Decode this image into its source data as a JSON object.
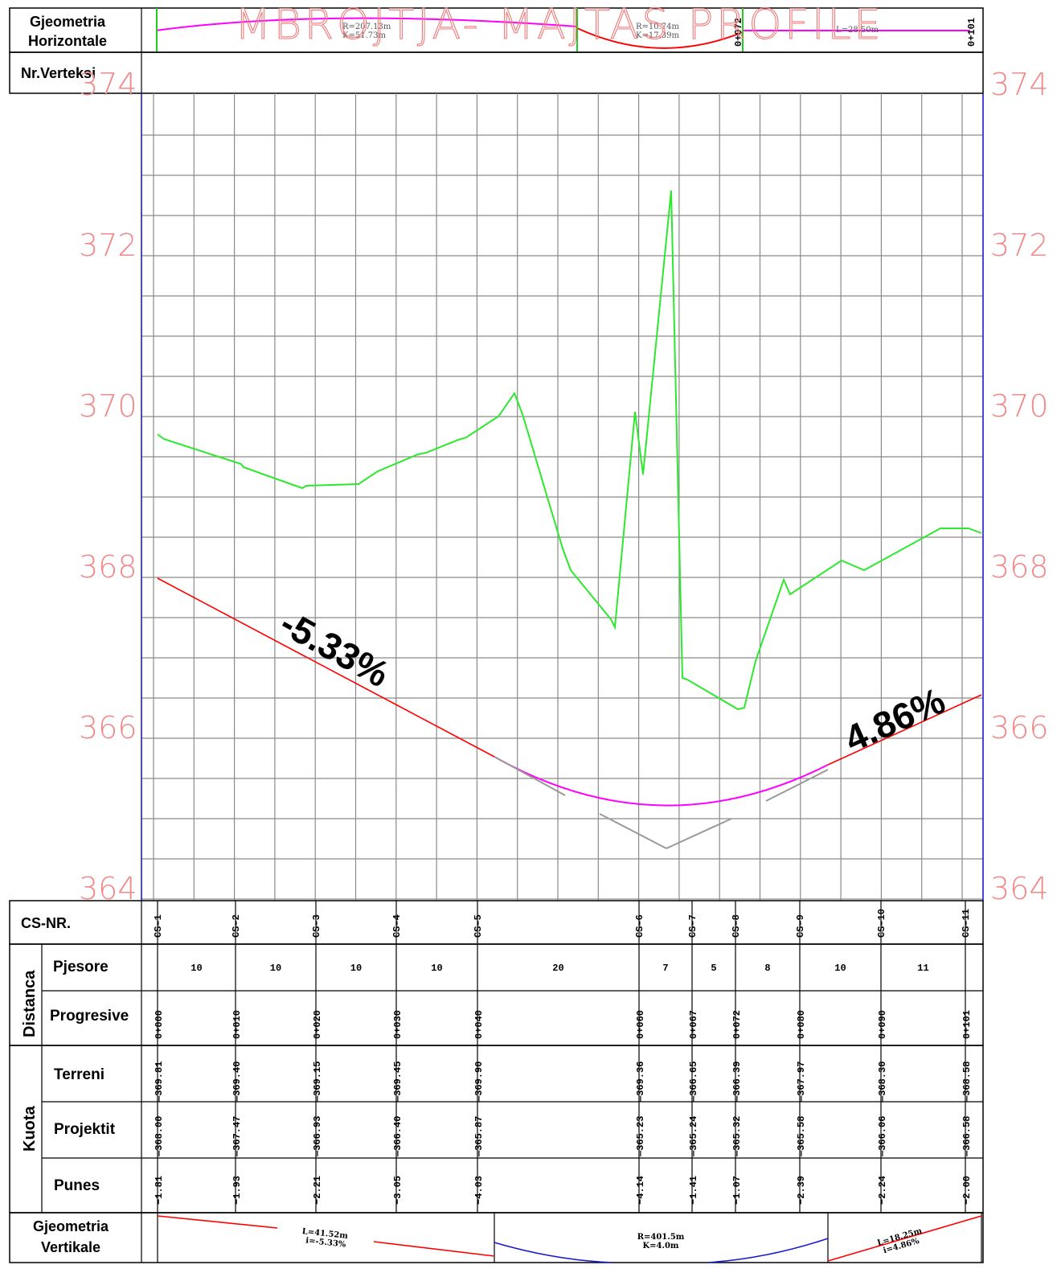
{
  "title": "MBROJTJA- MAJTAS PROFILE",
  "labels": {
    "horiz_geom": [
      "Gjeometria",
      "Horizontale"
    ],
    "vertex": "Nr.Verteksi",
    "cs_nr": "CS-NR.",
    "distanca": "Distanca",
    "pjesore": "Pjesore",
    "progresive": "Progresive",
    "kuota": "Kuota",
    "terreni": "Terreni",
    "projektit": "Projektit",
    "punes": "Punes",
    "vert_geom": [
      "Gjeometria",
      "Vertikale"
    ]
  },
  "horizontal_geometry": {
    "curve1": [
      "R=207.13m",
      "K=51.73m"
    ],
    "curve2": [
      "R=10.74m",
      "K=17.39m"
    ],
    "tangent": "L=28.50m",
    "stations": [
      "0+072",
      "0+101"
    ]
  },
  "elevation_labels": [
    "374",
    "372",
    "370",
    "368",
    "366",
    "364"
  ],
  "grades": [
    "-5.33%",
    "4.86%"
  ],
  "vertical_geometry": {
    "seg1": [
      "L=41.52m",
      "i=-5.33%"
    ],
    "seg2": [
      "R=401.5m",
      "K=4.0m"
    ],
    "seg3": [
      "L=18.25m",
      "i=4.86%"
    ]
  },
  "cross_sections": [
    {
      "cs": "CS-1",
      "station": "0+000",
      "terrain": "369.81",
      "project": "368.00",
      "work": "-1.81"
    },
    {
      "cs": "CS-2",
      "station": "0+010",
      "terrain": "369.40",
      "project": "367.47",
      "work": "-1.93"
    },
    {
      "cs": "CS-3",
      "station": "0+020",
      "terrain": "369.15",
      "project": "366.93",
      "work": "-2.21"
    },
    {
      "cs": "CS-4",
      "station": "0+030",
      "terrain": "369.45",
      "project": "366.40",
      "work": "-3.05"
    },
    {
      "cs": "CS-5",
      "station": "0+040",
      "terrain": "369.90",
      "project": "365.87",
      "work": "-4.03"
    },
    {
      "cs": "CS-6",
      "station": "0+060",
      "terrain": "369.36",
      "project": "365.23",
      "work": "-4.14"
    },
    {
      "cs": "CS-7",
      "station": "0+067",
      "terrain": "366.65",
      "project": "365.24",
      "work": "-1.41"
    },
    {
      "cs": "CS-8",
      "station": "0+072",
      "terrain": "366.39",
      "project": "365.32",
      "work": "-1.07"
    },
    {
      "cs": "CS-9",
      "station": "0+080",
      "terrain": "367.97",
      "project": "365.58",
      "work": "-2.39"
    },
    {
      "cs": "CS-10",
      "station": "0+090",
      "terrain": "368.30",
      "project": "366.06",
      "work": "-2.24"
    },
    {
      "cs": "CS-11",
      "station": "0+101",
      "terrain": "368.58",
      "project": "366.58",
      "work": "-2.00"
    }
  ],
  "partial_distances": [
    "10",
    "10",
    "10",
    "10",
    "20",
    "7",
    "5",
    "8",
    "10",
    "11"
  ],
  "colors": {
    "terrain": "#2ee82e",
    "project_grade": "#ff0000",
    "vertical_curve": "#ff00ff",
    "tangent_ext": "#999999",
    "grid": "#8a8a8a",
    "border_blue": "#1a1acc",
    "elev_label": "#f08a8a"
  }
}
